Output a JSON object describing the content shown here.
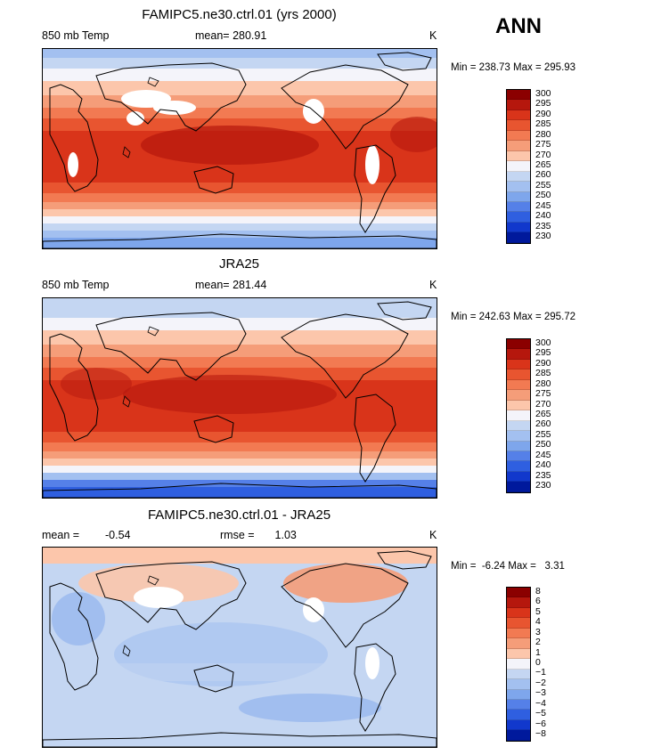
{
  "season": "ANN",
  "colors": {
    "abs_palette": [
      "#8b0000",
      "#b5170d",
      "#d9341a",
      "#e85530",
      "#f27a52",
      "#f59d79",
      "#fcc6ab",
      "#f4f4fa",
      "#c4d6f2",
      "#a3c0f0",
      "#7ea6ec",
      "#5580e8",
      "#2f5fe0",
      "#1138cc",
      "#00199c"
    ],
    "diff_palette": [
      "#8b0000",
      "#b5170d",
      "#d9341a",
      "#e85530",
      "#f27a52",
      "#f59d79",
      "#fcc6ab",
      "#f4f4fa",
      "#c4d6f2",
      "#a3c0f0",
      "#7ea6ec",
      "#5580e8",
      "#2f5fe0",
      "#1138cc",
      "#00199c"
    ]
  },
  "panels": [
    {
      "title": "FAMIPC5.ne30.ctrl.01 (yrs 2000)",
      "left_label": "850 mb Temp",
      "stat_label": "mean=",
      "stat_value": "280.91",
      "units": "K",
      "min_label": "Min =",
      "min_value": "238.73",
      "max_label": "Max =",
      "max_value": "295.93",
      "ticks": [
        "300",
        "295",
        "290",
        "285",
        "280",
        "275",
        "270",
        "265",
        "260",
        "255",
        "250",
        "245",
        "240",
        "235",
        "230"
      ]
    },
    {
      "title": "JRA25",
      "left_label": "850 mb Temp",
      "stat_label": "mean=",
      "stat_value": "281.44",
      "units": "K",
      "min_label": "Min =",
      "min_value": "242.63",
      "max_label": "Max =",
      "max_value": "295.72",
      "ticks": [
        "300",
        "295",
        "290",
        "285",
        "280",
        "275",
        "270",
        "265",
        "260",
        "255",
        "250",
        "245",
        "240",
        "235",
        "230"
      ]
    },
    {
      "title": "FAMIPC5.ne30.ctrl.01 - JRA25",
      "left_label": "mean =",
      "left_value": "-0.54",
      "stat_label": "rmse =",
      "stat_value": "1.03",
      "units": "K",
      "min_label": "Min =",
      "min_value": "-6.24",
      "max_label": "Max =",
      "max_value": "3.31",
      "ticks": [
        "8",
        "6",
        "5",
        "4",
        "3",
        "2",
        "1",
        "0",
        "−1",
        "−2",
        "−3",
        "−4",
        "−5",
        "−6",
        "−8"
      ]
    }
  ]
}
